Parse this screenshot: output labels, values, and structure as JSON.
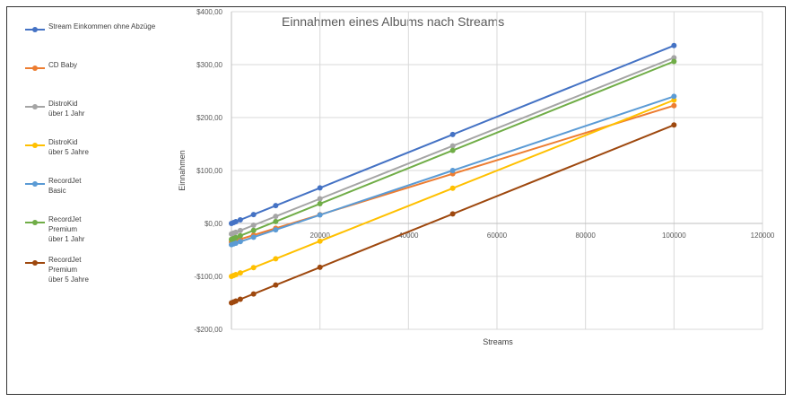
{
  "chart_data": {
    "type": "line",
    "title": "Einnahmen eines Albums nach Streams",
    "xlabel": "Streams",
    "ylabel": "Einnahmen",
    "xlim": [
      0,
      120000
    ],
    "ylim": [
      -200,
      400
    ],
    "x_ticks": [
      20000,
      40000,
      60000,
      80000,
      100000,
      120000
    ],
    "x_tick_labels": [
      "20000",
      "40000",
      "60000",
      "80000",
      "100000",
      "120000"
    ],
    "y_ticks": [
      400,
      300,
      200,
      100,
      0,
      -100,
      -200
    ],
    "y_tick_labels": [
      "$400,00",
      "$300,00",
      "$200,00",
      "$100,00",
      "$0,00",
      "-$100,00",
      "-$200,00"
    ],
    "negative_tick_color": "#c00000",
    "grid": true,
    "legend_position": "left",
    "x": [
      0,
      500,
      1000,
      2000,
      5000,
      10000,
      20000,
      50000,
      100000
    ],
    "series": [
      {
        "name": "Stream Einkommen ohne Abzüge",
        "color": "#4472c4",
        "values": [
          0,
          1.68,
          3.36,
          6.72,
          16.8,
          33.6,
          67.2,
          168,
          336
        ]
      },
      {
        "name": "CD Baby",
        "color": "#ed7d31",
        "values": [
          -35,
          -33.7,
          -32.4,
          -29.9,
          -22.1,
          -9.2,
          16.5,
          93.8,
          222.5
        ]
      },
      {
        "name": "DistroKid\nüber 1 Jahr",
        "color": "#a5a5a5",
        "values": [
          -20,
          -18.3,
          -16.7,
          -13.4,
          -3.4,
          13.3,
          46.6,
          146.5,
          313
        ]
      },
      {
        "name": "DistroKid\nüber 5 Jahre",
        "color": "#ffc000",
        "values": [
          -100,
          -98.3,
          -96.7,
          -93.4,
          -83.4,
          -66.7,
          -33.4,
          66.5,
          233
        ]
      },
      {
        "name": "RecordJet\nBasic",
        "color": "#5b9bd5",
        "values": [
          -40,
          -38.6,
          -37.2,
          -34.4,
          -26,
          -12,
          16,
          100,
          240
        ]
      },
      {
        "name": "RecordJet\nPremium\nüber 1 Jahr",
        "color": "#70ad47",
        "values": [
          -30,
          -28.3,
          -26.6,
          -23.3,
          -13.2,
          3.6,
          37.2,
          138,
          306
        ]
      },
      {
        "name": "RecordJet\nPremium\nüber 5 Jahre",
        "color": "#9e480e",
        "values": [
          -150,
          -148.3,
          -146.6,
          -143.3,
          -133.2,
          -116.4,
          -82.8,
          18,
          186
        ]
      }
    ]
  }
}
